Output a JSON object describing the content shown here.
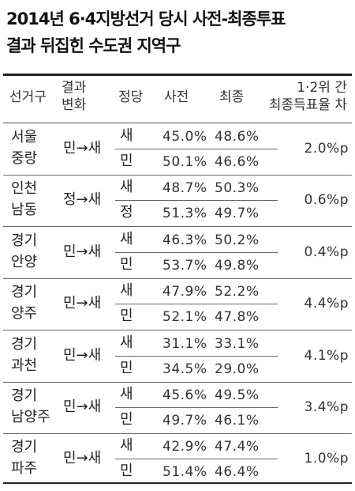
{
  "title_line1": "2014년 6·4지방선거 당시 사전-최종투표",
  "title_line2": "결과 뒤집힌 수도권 지역구",
  "headers": {
    "district": "선거구",
    "result_change_1": "결과",
    "result_change_2": "변화",
    "party": "정당",
    "early": "사전",
    "final": "최종",
    "gap_1": "1·2위 간",
    "gap_2": "최종득표율 차"
  },
  "chart_data": {
    "type": "table",
    "columns": [
      "선거구",
      "결과 변화",
      "정당",
      "사전",
      "최종",
      "1·2위 간 최종득표율 차"
    ],
    "rows": [
      {
        "region1": "서울",
        "region2": "중랑",
        "change": "민→새",
        "p1": "새",
        "early1": "45.0%",
        "final1": "48.6%",
        "p2": "민",
        "early2": "50.1%",
        "final2": "46.6%",
        "gap": "2.0%p"
      },
      {
        "region1": "인천",
        "region2": "남동",
        "change": "정→새",
        "p1": "새",
        "early1": "48.7%",
        "final1": "50.3%",
        "p2": "정",
        "early2": "51.3%",
        "final2": "49.7%",
        "gap": "0.6%p"
      },
      {
        "region1": "경기",
        "region2": "안양",
        "change": "민→새",
        "p1": "새",
        "early1": "46.3%",
        "final1": "50.2%",
        "p2": "민",
        "early2": "53.7%",
        "final2": "49.8%",
        "gap": "0.4%p"
      },
      {
        "region1": "경기",
        "region2": "양주",
        "change": "민→새",
        "p1": "새",
        "early1": "47.9%",
        "final1": "52.2%",
        "p2": "민",
        "early2": "52.1%",
        "final2": "47.8%",
        "gap": "4.4%p"
      },
      {
        "region1": "경기",
        "region2": "과천",
        "change": "민→새",
        "p1": "새",
        "early1": "31.1%",
        "final1": "33.1%",
        "p2": "민",
        "early2": "34.5%",
        "final2": "29.0%",
        "gap": "4.1%p"
      },
      {
        "region1": "경기",
        "region2": "남양주",
        "change": "민→새",
        "p1": "새",
        "early1": "45.6%",
        "final1": "49.5%",
        "p2": "민",
        "early2": "49.7%",
        "final2": "46.1%",
        "gap": "3.4%p"
      },
      {
        "region1": "경기",
        "region2": "파주",
        "change": "민→새",
        "p1": "새",
        "early1": "42.9%",
        "final1": "47.4%",
        "p2": "민",
        "early2": "51.4%",
        "final2": "46.4%",
        "gap": "1.0%p"
      }
    ]
  }
}
